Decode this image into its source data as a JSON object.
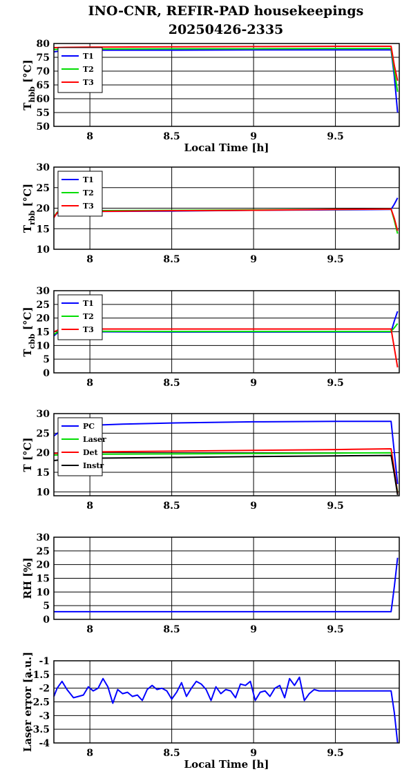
{
  "title": "INO-CNR, REFIR-PAD housekeepings",
  "subtitle": "20250426-2335",
  "chart_data": [
    {
      "type": "line",
      "ylabel": "T",
      "ylabel_sub": "hbb",
      "ylabel_unit": "[°C]",
      "xlabel": "Local Time [h]",
      "xlim": [
        7.78,
        9.89
      ],
      "ylim": [
        50,
        80
      ],
      "x_ticks": [
        "8",
        "8.5",
        "9",
        "9.5"
      ],
      "y_ticks": [
        "50",
        "55",
        "60",
        "65",
        "70",
        "75",
        "80"
      ],
      "legend_position": "top-left",
      "grid": true,
      "series": [
        {
          "name": "T1",
          "color": "#0000ff",
          "x": [
            7.78,
            7.85,
            8.0,
            8.5,
            9.0,
            9.5,
            9.84,
            9.86,
            9.88
          ],
          "y": [
            77.0,
            77.5,
            77.6,
            77.6,
            77.7,
            77.7,
            77.7,
            68.0,
            55.0
          ]
        },
        {
          "name": "T2",
          "color": "#00dd00",
          "x": [
            7.78,
            7.85,
            8.0,
            8.5,
            9.0,
            9.5,
            9.84,
            9.86,
            9.88
          ],
          "y": [
            77.8,
            78.0,
            78.0,
            78.1,
            78.1,
            78.2,
            78.2,
            70.0,
            62.5
          ]
        },
        {
          "name": "T3",
          "color": "#ff0000",
          "x": [
            7.78,
            7.85,
            8.0,
            8.5,
            9.0,
            9.5,
            9.84,
            9.86,
            9.88
          ],
          "y": [
            78.5,
            78.6,
            78.7,
            78.8,
            78.9,
            79.0,
            79.0,
            72.0,
            66.5
          ]
        }
      ]
    },
    {
      "type": "line",
      "ylabel": "T",
      "ylabel_sub": "rbb",
      "ylabel_unit": "[°C]",
      "xlabel": "",
      "xlim": [
        7.78,
        9.89
      ],
      "ylim": [
        10,
        30
      ],
      "x_ticks": [
        "8",
        "8.5",
        "9",
        "9.5"
      ],
      "y_ticks": [
        "10",
        "15",
        "20",
        "25",
        "30"
      ],
      "legend_position": "top-left",
      "grid": true,
      "series": [
        {
          "name": "T1",
          "color": "#0000ff",
          "x": [
            7.78,
            7.8,
            7.82,
            8.0,
            8.5,
            9.0,
            9.5,
            9.84,
            9.86,
            9.88
          ],
          "y": [
            17.8,
            18.8,
            19.1,
            19.2,
            19.3,
            19.5,
            19.6,
            19.7,
            21.0,
            22.5
          ]
        },
        {
          "name": "T2",
          "color": "#00dd00",
          "x": [
            7.78,
            7.8,
            7.82,
            8.0,
            8.5,
            9.0,
            9.5,
            9.84,
            9.86,
            9.88
          ],
          "y": [
            17.9,
            19.0,
            19.4,
            19.4,
            19.5,
            19.6,
            19.7,
            19.8,
            17.0,
            13.8
          ]
        },
        {
          "name": "T3",
          "color": "#ff0000",
          "x": [
            7.78,
            7.8,
            7.82,
            8.0,
            8.5,
            9.0,
            9.5,
            9.84,
            9.86,
            9.88
          ],
          "y": [
            17.7,
            18.9,
            19.2,
            19.2,
            19.4,
            19.5,
            19.7,
            19.8,
            17.5,
            14.5
          ]
        }
      ]
    },
    {
      "type": "line",
      "ylabel": "T",
      "ylabel_sub": "cbb",
      "ylabel_unit": "[°C]",
      "xlabel": "",
      "xlim": [
        7.78,
        9.89
      ],
      "ylim": [
        0,
        30
      ],
      "x_ticks": [
        "8",
        "8.5",
        "9",
        "9.5"
      ],
      "y_ticks": [
        "0",
        "5",
        "10",
        "15",
        "20",
        "25",
        "30"
      ],
      "legend_position": "top-left",
      "grid": true,
      "series": [
        {
          "name": "T1",
          "color": "#0000ff",
          "x": [
            7.78,
            7.8,
            7.82,
            8.0,
            8.5,
            9.0,
            9.5,
            9.84,
            9.86,
            9.88
          ],
          "y": [
            13.5,
            14.5,
            15.0,
            15.0,
            14.9,
            14.9,
            14.9,
            14.9,
            19.0,
            22.5
          ]
        },
        {
          "name": "T2",
          "color": "#00dd00",
          "x": [
            7.78,
            7.8,
            7.82,
            8.0,
            8.5,
            9.0,
            9.5,
            9.84,
            9.86,
            9.88
          ],
          "y": [
            14.0,
            14.8,
            15.2,
            15.2,
            15.1,
            15.1,
            15.1,
            15.1,
            16.5,
            18.0
          ]
        },
        {
          "name": "T3",
          "color": "#ff0000",
          "x": [
            7.78,
            7.8,
            7.82,
            8.0,
            8.5,
            9.0,
            9.5,
            9.84,
            9.86,
            9.88
          ],
          "y": [
            15.0,
            15.5,
            16.0,
            16.0,
            16.0,
            16.0,
            16.0,
            16.0,
            9.0,
            2.0
          ]
        }
      ]
    },
    {
      "type": "line",
      "ylabel": "T [°C]",
      "ylabel_sub": "",
      "ylabel_unit": "",
      "xlabel": "",
      "xlim": [
        7.78,
        9.89
      ],
      "ylim": [
        9,
        30
      ],
      "x_ticks": [
        "8",
        "8.5",
        "9",
        "9.5"
      ],
      "y_ticks": [
        "10",
        "15",
        "20",
        "25",
        "30"
      ],
      "legend_position": "top-left",
      "grid": true,
      "series": [
        {
          "name": "PC",
          "color": "#0000ff",
          "x": [
            7.78,
            7.85,
            8.0,
            8.2,
            8.5,
            9.0,
            9.5,
            9.84,
            9.86,
            9.88
          ],
          "y": [
            24.3,
            26.5,
            27.0,
            27.3,
            27.6,
            27.9,
            28.0,
            28.0,
            20.0,
            12.0
          ]
        },
        {
          "name": "Laser",
          "color": "#00dd00",
          "x": [
            7.78,
            7.85,
            8.0,
            8.5,
            9.0,
            9.5,
            9.84,
            9.86,
            9.88
          ],
          "y": [
            19.4,
            19.5,
            19.6,
            19.7,
            19.8,
            19.9,
            20.0,
            15.0,
            10.0
          ]
        },
        {
          "name": "Det",
          "color": "#ff0000",
          "x": [
            7.78,
            7.85,
            8.0,
            8.5,
            9.0,
            9.5,
            9.84,
            9.86,
            9.88
          ],
          "y": [
            19.8,
            20.0,
            20.2,
            20.4,
            20.6,
            20.8,
            21.0,
            15.5,
            9.5
          ]
        },
        {
          "name": "Instr",
          "color": "#000000",
          "x": [
            7.78,
            7.85,
            8.0,
            8.5,
            9.0,
            9.5,
            9.84,
            9.86,
            9.88
          ],
          "y": [
            18.0,
            18.3,
            18.6,
            18.8,
            19.0,
            19.2,
            19.3,
            14.5,
            9.2
          ]
        }
      ]
    },
    {
      "type": "line",
      "ylabel": "RH [%]",
      "ylabel_sub": "",
      "ylabel_unit": "",
      "xlabel": "",
      "xlim": [
        7.78,
        9.89
      ],
      "ylim": [
        0,
        30
      ],
      "x_ticks": [
        "8",
        "8.5",
        "9",
        "9.5"
      ],
      "y_ticks": [
        "0",
        "5",
        "10",
        "15",
        "20",
        "25",
        "30"
      ],
      "legend_position": "none",
      "grid": true,
      "series": [
        {
          "name": "",
          "color": "#0000ff",
          "x": [
            7.78,
            8.0,
            8.5,
            9.0,
            9.5,
            9.84,
            9.86,
            9.88
          ],
          "y": [
            2.8,
            2.8,
            2.8,
            2.8,
            2.8,
            2.8,
            12.0,
            22.5
          ]
        }
      ]
    },
    {
      "type": "line",
      "ylabel": "Laser error [a.u.]",
      "ylabel_sub": "",
      "ylabel_unit": "",
      "xlabel": "Local Time [h]",
      "xlim": [
        7.78,
        9.89
      ],
      "ylim": [
        -4,
        -1
      ],
      "x_ticks": [
        "8",
        "8.5",
        "9",
        "9.5"
      ],
      "y_ticks": [
        "-4",
        "-3.5",
        "-3",
        "-2.5",
        "-2",
        "-1.5",
        "-1"
      ],
      "legend_position": "none",
      "grid": true,
      "series": [
        {
          "name": "",
          "color": "#0000ff",
          "x": [
            7.78,
            7.8,
            7.83,
            7.86,
            7.9,
            7.93,
            7.96,
            7.99,
            8.02,
            8.05,
            8.08,
            8.11,
            8.14,
            8.17,
            8.2,
            8.23,
            8.26,
            8.29,
            8.32,
            8.35,
            8.38,
            8.41,
            8.44,
            8.47,
            8.5,
            8.53,
            8.56,
            8.59,
            8.62,
            8.65,
            8.68,
            8.71,
            8.74,
            8.77,
            8.8,
            8.83,
            8.86,
            8.89,
            8.92,
            8.95,
            8.98,
            9.01,
            9.04,
            9.07,
            9.1,
            9.13,
            9.16,
            9.19,
            9.22,
            9.25,
            9.28,
            9.31,
            9.34,
            9.37,
            9.4,
            9.42,
            9.5,
            9.6,
            9.7,
            9.8,
            9.84,
            9.86,
            9.88
          ],
          "y": [
            -2.3,
            -2.0,
            -1.75,
            -2.05,
            -2.35,
            -2.3,
            -2.25,
            -1.95,
            -2.1,
            -2.0,
            -1.65,
            -1.95,
            -2.55,
            -2.05,
            -2.2,
            -2.15,
            -2.3,
            -2.25,
            -2.45,
            -2.05,
            -1.9,
            -2.05,
            -2.0,
            -2.1,
            -2.4,
            -2.15,
            -1.8,
            -2.3,
            -2.0,
            -1.75,
            -1.85,
            -2.05,
            -2.45,
            -1.95,
            -2.2,
            -2.05,
            -2.1,
            -2.35,
            -1.85,
            -1.9,
            -1.75,
            -2.45,
            -2.15,
            -2.1,
            -2.3,
            -2.0,
            -1.9,
            -2.35,
            -1.65,
            -1.9,
            -1.6,
            -2.45,
            -2.2,
            -2.05,
            -2.1,
            -2.1,
            -2.1,
            -2.1,
            -2.1,
            -2.1,
            -2.1,
            -2.9,
            -4.0
          ]
        }
      ]
    }
  ]
}
